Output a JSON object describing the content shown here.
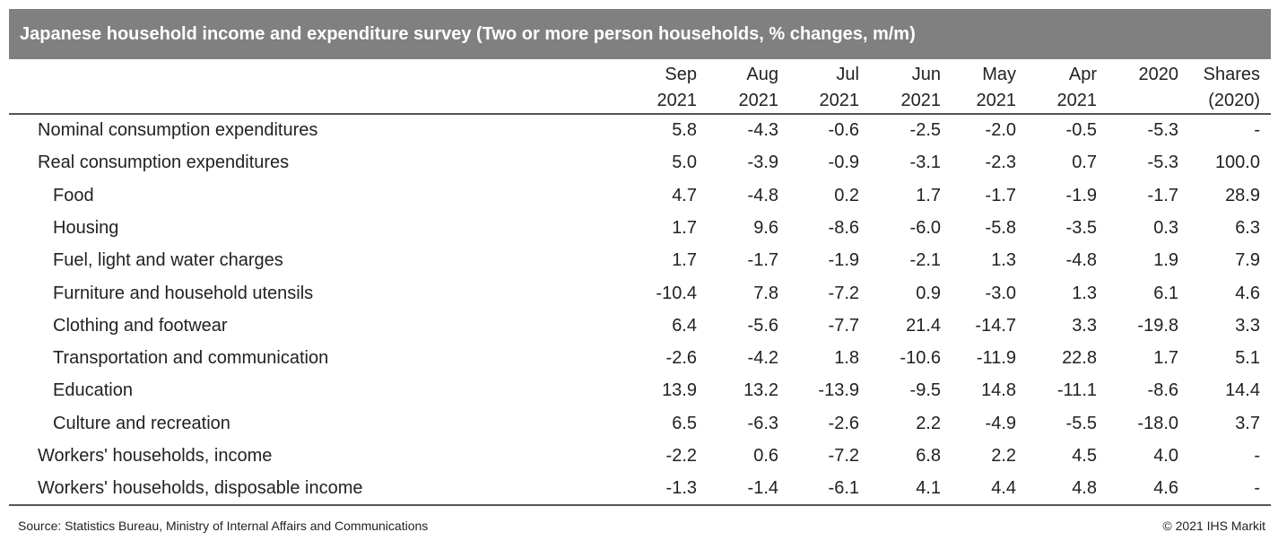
{
  "title": "Japanese household income and expenditure survey (Two or more person households, % changes, m/m)",
  "columns": [
    {
      "line1": "Sep",
      "line2": "2021"
    },
    {
      "line1": "Aug",
      "line2": "2021"
    },
    {
      "line1": "Jul",
      "line2": "2021"
    },
    {
      "line1": "Jun",
      "line2": "2021"
    },
    {
      "line1": "May",
      "line2": "2021"
    },
    {
      "line1": "Apr",
      "line2": "2021"
    },
    {
      "line1": "2020"
    },
    {
      "line1": "Shares",
      "line2": "(2020)"
    }
  ],
  "rows": [
    {
      "label": "Nominal consumption expenditures",
      "indent": false,
      "values": [
        "5.8",
        "-4.3",
        "-0.6",
        "-2.5",
        "-2.0",
        "-0.5",
        "-5.3",
        "-"
      ]
    },
    {
      "label": "Real consumption expenditures",
      "indent": false,
      "values": [
        "5.0",
        "-3.9",
        "-0.9",
        "-3.1",
        "-2.3",
        "0.7",
        "-5.3",
        "100.0"
      ]
    },
    {
      "label": "Food",
      "indent": true,
      "values": [
        "4.7",
        "-4.8",
        "0.2",
        "1.7",
        "-1.7",
        "-1.9",
        "-1.7",
        "28.9"
      ]
    },
    {
      "label": "Housing",
      "indent": true,
      "values": [
        "1.7",
        "9.6",
        "-8.6",
        "-6.0",
        "-5.8",
        "-3.5",
        "0.3",
        "6.3"
      ]
    },
    {
      "label": "Fuel, light and water charges",
      "indent": true,
      "values": [
        "1.7",
        "-1.7",
        "-1.9",
        "-2.1",
        "1.3",
        "-4.8",
        "1.9",
        "7.9"
      ]
    },
    {
      "label": "Furniture and household utensils",
      "indent": true,
      "values": [
        "-10.4",
        "7.8",
        "-7.2",
        "0.9",
        "-3.0",
        "1.3",
        "6.1",
        "4.6"
      ]
    },
    {
      "label": "Clothing and footwear",
      "indent": true,
      "values": [
        "6.4",
        "-5.6",
        "-7.7",
        "21.4",
        "-14.7",
        "3.3",
        "-19.8",
        "3.3"
      ]
    },
    {
      "label": "Transportation and communication",
      "indent": true,
      "values": [
        "-2.6",
        "-4.2",
        "1.8",
        "-10.6",
        "-11.9",
        "22.8",
        "1.7",
        "5.1"
      ]
    },
    {
      "label": "Education",
      "indent": true,
      "values": [
        "13.9",
        "13.2",
        "-13.9",
        "-9.5",
        "14.8",
        "-11.1",
        "-8.6",
        "14.4"
      ]
    },
    {
      "label": "Culture and recreation",
      "indent": true,
      "values": [
        "6.5",
        "-6.3",
        "-2.6",
        "2.2",
        "-4.9",
        "-5.5",
        "-18.0",
        "3.7"
      ]
    },
    {
      "label": "Workers' households, income",
      "indent": false,
      "values": [
        "-2.2",
        "0.6",
        "-7.2",
        "6.8",
        "2.2",
        "4.5",
        "4.0",
        "-"
      ]
    },
    {
      "label": "Workers' households, disposable income",
      "indent": false,
      "values": [
        "-1.3",
        "-1.4",
        "-6.1",
        "4.1",
        "4.4",
        "4.8",
        "4.6",
        "-"
      ]
    }
  ],
  "source": "Source: Statistics Bureau, Ministry of Internal Affairs and Communications",
  "copyright": "© 2021 IHS Markit"
}
